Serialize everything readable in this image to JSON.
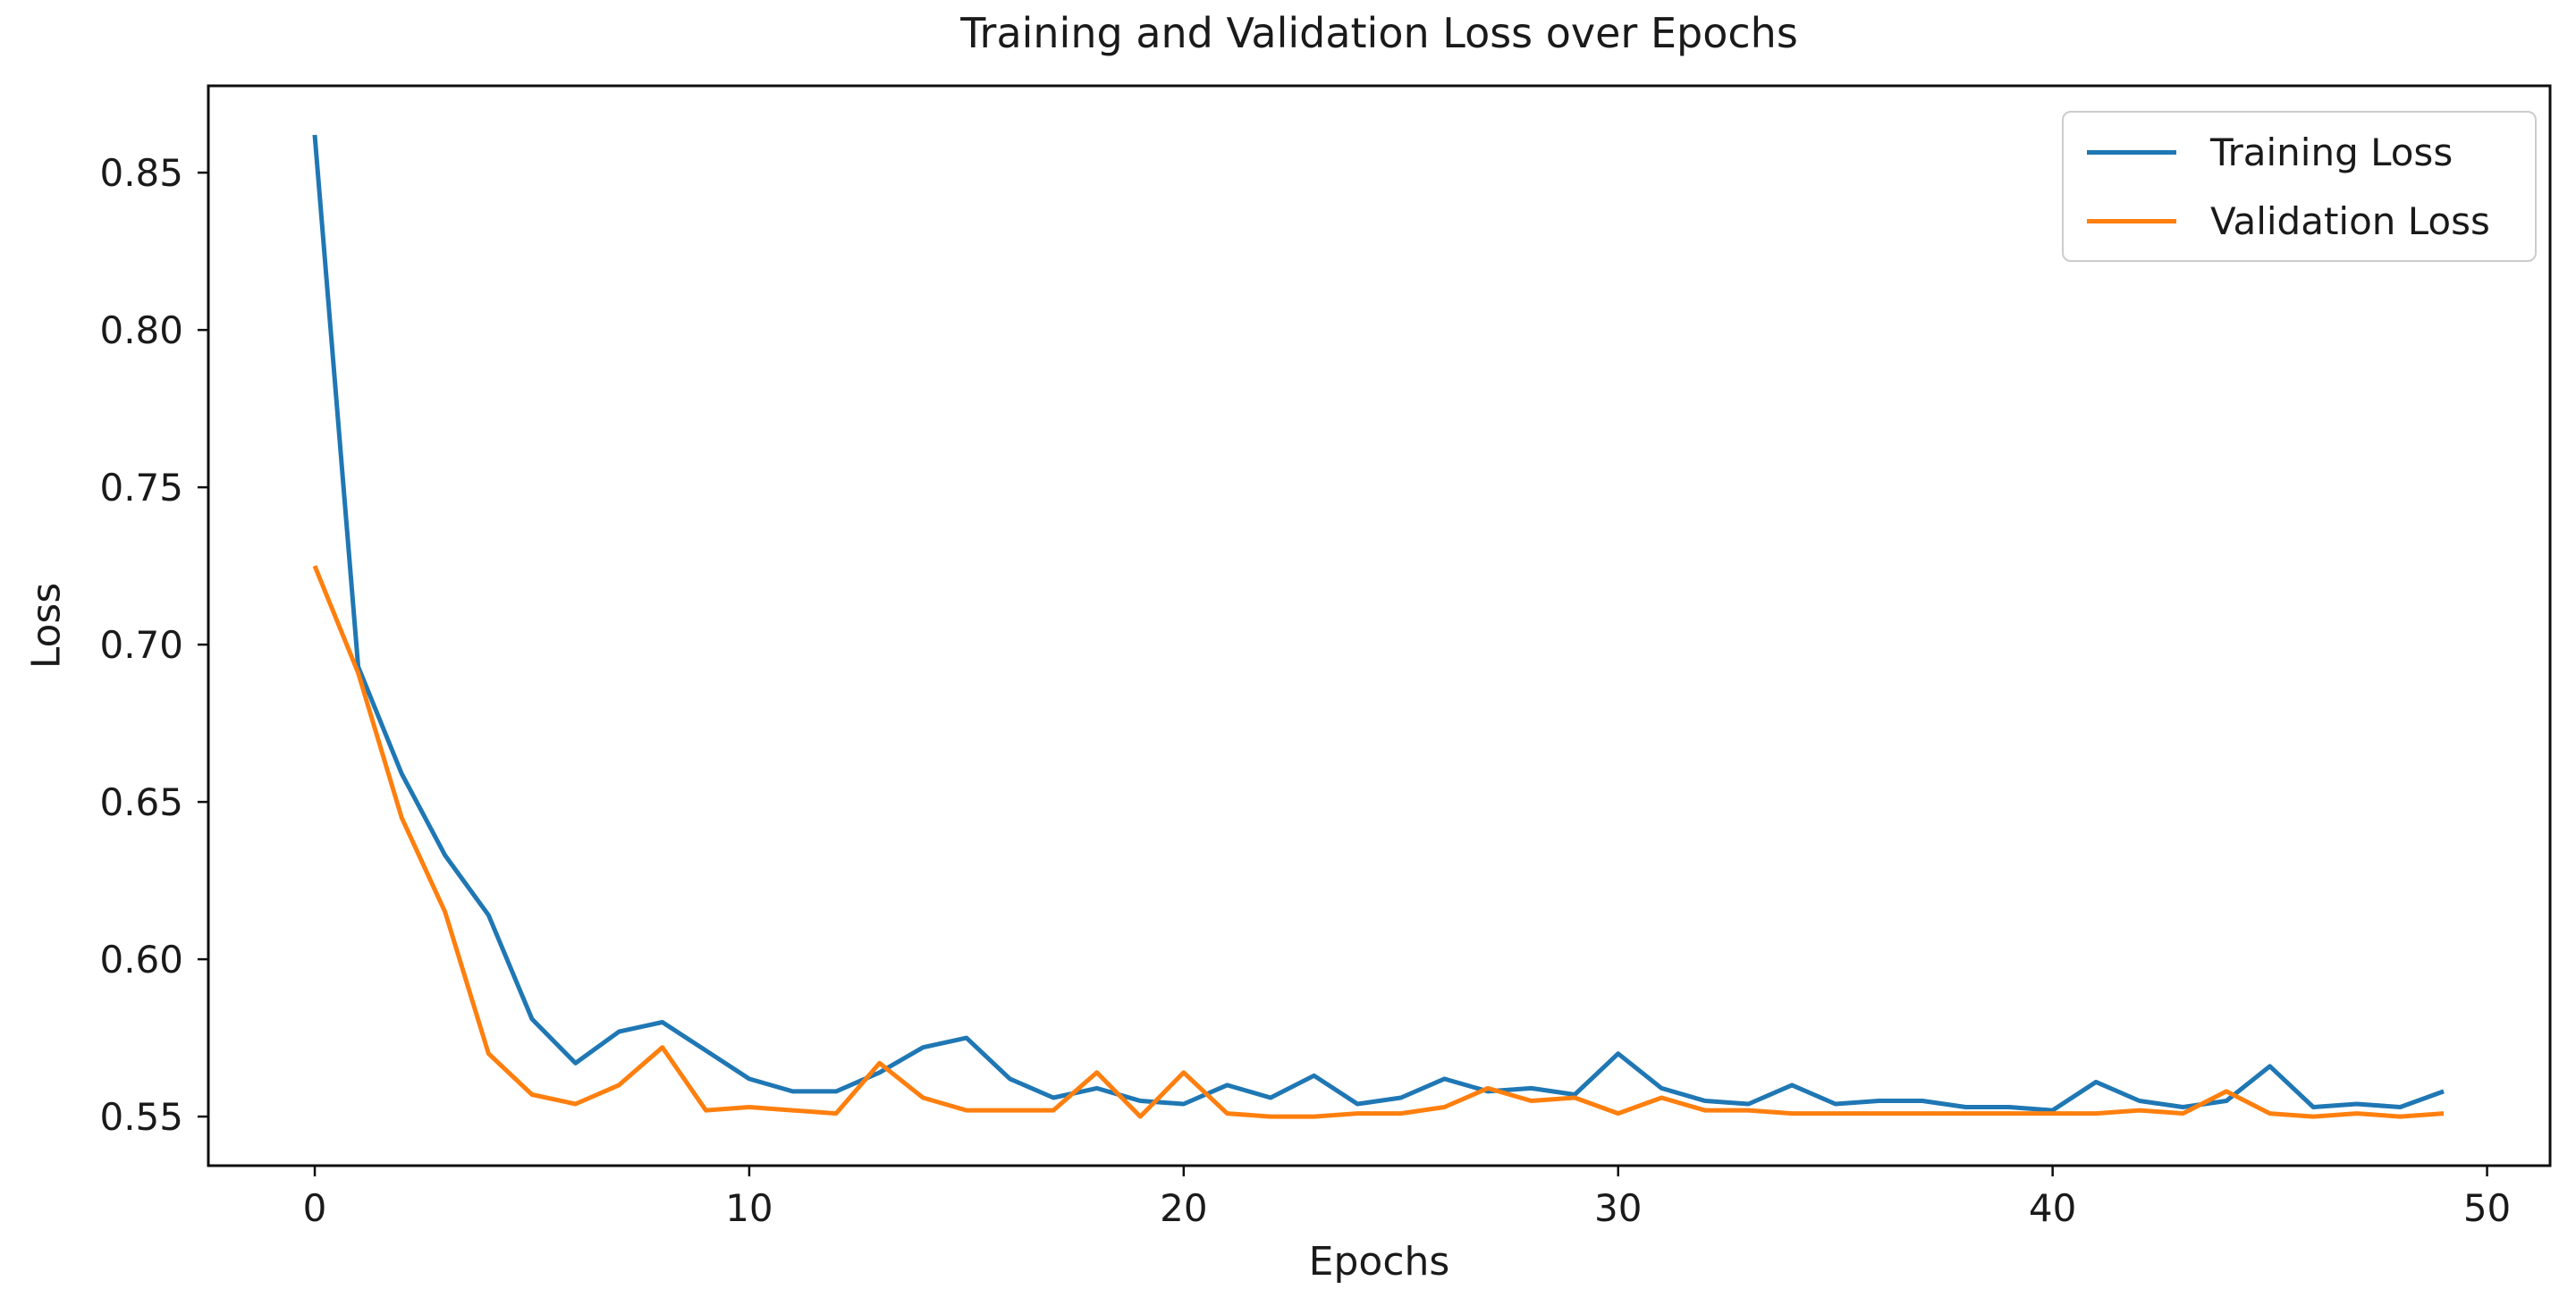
{
  "chart_data": {
    "type": "line",
    "title": "Training and Validation Loss over Epochs",
    "xlabel": "Epochs",
    "ylabel": "Loss",
    "x": [
      0,
      1,
      2,
      3,
      4,
      5,
      6,
      7,
      8,
      9,
      10,
      11,
      12,
      13,
      14,
      15,
      16,
      17,
      18,
      19,
      20,
      21,
      22,
      23,
      24,
      25,
      26,
      27,
      28,
      29,
      30,
      31,
      32,
      33,
      34,
      35,
      36,
      37,
      38,
      39,
      40,
      41,
      42,
      43,
      44,
      45,
      46,
      47,
      48,
      49
    ],
    "series": [
      {
        "name": "Training Loss",
        "color": "#1f77b4",
        "values": [
          0.862,
          0.693,
          0.659,
          0.633,
          0.614,
          0.581,
          0.567,
          0.577,
          0.58,
          0.571,
          0.562,
          0.558,
          0.558,
          0.564,
          0.572,
          0.575,
          0.562,
          0.556,
          0.559,
          0.555,
          0.554,
          0.56,
          0.556,
          0.563,
          0.554,
          0.556,
          0.562,
          0.558,
          0.559,
          0.557,
          0.57,
          0.559,
          0.555,
          0.554,
          0.56,
          0.554,
          0.555,
          0.555,
          0.553,
          0.553,
          0.552,
          0.561,
          0.555,
          0.553,
          0.555,
          0.566,
          0.553,
          0.554,
          0.553,
          0.558
        ]
      },
      {
        "name": "Validation Loss",
        "color": "#ff7f0e",
        "values": [
          0.725,
          0.691,
          0.645,
          0.615,
          0.57,
          0.557,
          0.554,
          0.56,
          0.572,
          0.552,
          0.553,
          0.552,
          0.551,
          0.567,
          0.556,
          0.552,
          0.552,
          0.552,
          0.564,
          0.55,
          0.564,
          0.551,
          0.55,
          0.55,
          0.551,
          0.551,
          0.553,
          0.559,
          0.555,
          0.556,
          0.551,
          0.556,
          0.552,
          0.552,
          0.551,
          0.551,
          0.551,
          0.551,
          0.551,
          0.551,
          0.551,
          0.551,
          0.552,
          0.551,
          0.558,
          0.551,
          0.55,
          0.551,
          0.55,
          0.551
        ]
      }
    ],
    "xlim": [
      -2.45,
      51.45
    ],
    "ylim": [
      0.5344,
      0.8776
    ],
    "x_ticks": [
      0,
      10,
      20,
      30,
      40,
      50
    ],
    "y_ticks": [
      0.55,
      0.6,
      0.65,
      0.7,
      0.75,
      0.8,
      0.85
    ],
    "y_tick_labels": [
      "0.55",
      "0.60",
      "0.65",
      "0.70",
      "0.75",
      "0.80",
      "0.85"
    ],
    "grid": false,
    "legend_position": "upper right",
    "background_color": "#ffffff",
    "axis_color": "#000000"
  }
}
